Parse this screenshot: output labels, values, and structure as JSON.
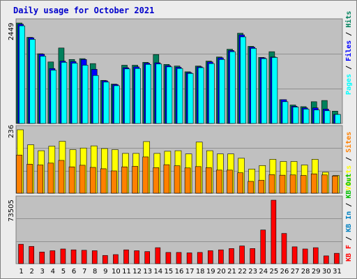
{
  "title": "Daily usage for October 2021",
  "colors": {
    "hits": "#00805c",
    "files": "#0000ff",
    "pages": "#00ffff",
    "visits": "#ffff00",
    "sites": "#ff8000",
    "kbf": "#ff0000",
    "kbin": "#0080c0",
    "kbout": "#00c000",
    "panel_bg": "#c0c0c0",
    "frame_bg": "#ececec",
    "weekday": "#000000",
    "weekend": "#00805c"
  },
  "chart_data": [
    {
      "type": "bar",
      "panel": "top",
      "ymax_label": "2449",
      "ylim": [
        0,
        2449
      ],
      "legend": [
        "Pages",
        "Files",
        "Hits"
      ],
      "categories": [
        "1",
        "2",
        "3",
        "4",
        "5",
        "6",
        "7",
        "8",
        "9",
        "10",
        "11",
        "12",
        "13",
        "14",
        "15",
        "16",
        "17",
        "18",
        "19",
        "20",
        "21",
        "22",
        "23",
        "24",
        "25",
        "26",
        "27",
        "28",
        "29",
        "30",
        "31"
      ],
      "weekend": [
        2,
        3,
        9,
        10,
        16,
        17,
        23,
        24,
        30,
        31
      ],
      "series": [
        {
          "name": "Hits",
          "values": [
            2449,
            2100,
            1700,
            1500,
            1840,
            1560,
            1580,
            1460,
            1050,
            960,
            1420,
            1420,
            1490,
            1680,
            1440,
            1400,
            1260,
            1400,
            1520,
            1620,
            1810,
            2200,
            1880,
            1610,
            1750,
            580,
            450,
            410,
            530,
            560,
            300
          ]
        },
        {
          "name": "Files",
          "values": [
            2420,
            2090,
            1690,
            1340,
            1520,
            1510,
            1560,
            1320,
            1040,
            950,
            1360,
            1380,
            1470,
            1480,
            1410,
            1370,
            1240,
            1380,
            1500,
            1600,
            1780,
            2160,
            1860,
            1600,
            1620,
            580,
            420,
            380,
            380,
            350,
            220
          ]
        },
        {
          "name": "Pages",
          "values": [
            2380,
            2050,
            1640,
            1300,
            1490,
            1470,
            1420,
            1170,
            1010,
            920,
            1330,
            1340,
            1440,
            1450,
            1380,
            1340,
            1220,
            1360,
            1460,
            1560,
            1750,
            2110,
            1830,
            1580,
            1610,
            530,
            400,
            350,
            330,
            310,
            220
          ]
        }
      ]
    },
    {
      "type": "bar",
      "panel": "middle",
      "ymax_label": "236",
      "ylim": [
        0,
        236
      ],
      "legend": [
        "Visits",
        "Sites",
        "Outs"
      ],
      "categories": [
        "1",
        "2",
        "3",
        "4",
        "5",
        "6",
        "7",
        "8",
        "9",
        "10",
        "11",
        "12",
        "13",
        "14",
        "15",
        "16",
        "17",
        "18",
        "19",
        "20",
        "21",
        "22",
        "23",
        "24",
        "25",
        "26",
        "27",
        "28",
        "29",
        "30",
        "31"
      ],
      "series": [
        {
          "name": "Visits",
          "values": [
            236,
            180,
            158,
            175,
            193,
            162,
            168,
            176,
            166,
            162,
            148,
            148,
            192,
            148,
            156,
            158,
            146,
            190,
            158,
            146,
            146,
            130,
            90,
            103,
            126,
            118,
            118,
            105,
            126,
            78,
            66
          ]
        },
        {
          "name": "Sites",
          "values": [
            142,
            108,
            105,
            112,
            122,
            98,
            104,
            96,
            91,
            83,
            98,
            100,
            135,
            95,
            106,
            102,
            94,
            99,
            95,
            86,
            86,
            76,
            44,
            48,
            69,
            67,
            68,
            66,
            72,
            68,
            64
          ]
        }
      ]
    },
    {
      "type": "bar",
      "panel": "bottom",
      "ymax_label": "73505",
      "ylim": [
        0,
        73505
      ],
      "legend": [
        "KB F",
        "KB In",
        "KB Out"
      ],
      "categories": [
        "1",
        "2",
        "3",
        "4",
        "5",
        "6",
        "7",
        "8",
        "9",
        "10",
        "11",
        "12",
        "13",
        "14",
        "15",
        "16",
        "17",
        "18",
        "19",
        "20",
        "21",
        "22",
        "23",
        "24",
        "25",
        "26",
        "27",
        "28",
        "29",
        "30",
        "31"
      ],
      "series": [
        {
          "name": "KB F",
          "values": [
            22500,
            20000,
            13500,
            15000,
            17000,
            16000,
            15500,
            15000,
            9500,
            10500,
            16000,
            15000,
            14000,
            18500,
            13000,
            13000,
            12500,
            13000,
            15000,
            16000,
            17500,
            20500,
            17500,
            39000,
            73505,
            35000,
            19500,
            17000,
            18500,
            9000,
            12000
          ]
        }
      ]
    }
  ]
}
